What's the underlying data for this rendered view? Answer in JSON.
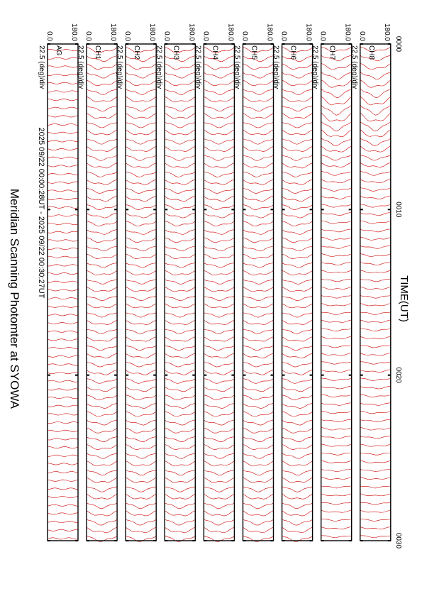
{
  "chart_data": {
    "type": "line",
    "title": "Meridian Scanning Photomter at SYOWA",
    "time_range": "2025 09/22 00:00:28UT - 2025 09/22 00:30:27UT",
    "xlabel": "TIME(UT)",
    "x_ticks": [
      "0000",
      "0010",
      "0020",
      "0030"
    ],
    "xlim_minutes": [
      0,
      30
    ],
    "scale_label": "22.5 (deg)/div",
    "y_ticks": [
      "180.0",
      "0.0"
    ],
    "ylim_deg": [
      0,
      180
    ],
    "line_color": "#cc0000",
    "grid": false,
    "panels": [
      {
        "channel": "AG",
        "traces": 60,
        "envelope": "flat"
      },
      {
        "channel": "CH1",
        "traces": 60,
        "envelope": "dome"
      },
      {
        "channel": "CH2",
        "traces": 60,
        "envelope": "dome"
      },
      {
        "channel": "CH3",
        "traces": 60,
        "envelope": "dome"
      },
      {
        "channel": "CH4",
        "traces": 60,
        "envelope": "dome"
      },
      {
        "channel": "CH5",
        "traces": 60,
        "envelope": "dome"
      },
      {
        "channel": "CH6",
        "traces": 60,
        "envelope": "dome"
      },
      {
        "channel": "CH7",
        "traces": 60,
        "envelope": "peak_early"
      },
      {
        "channel": "CH8",
        "traces": 60,
        "envelope": "peak_early"
      }
    ]
  }
}
